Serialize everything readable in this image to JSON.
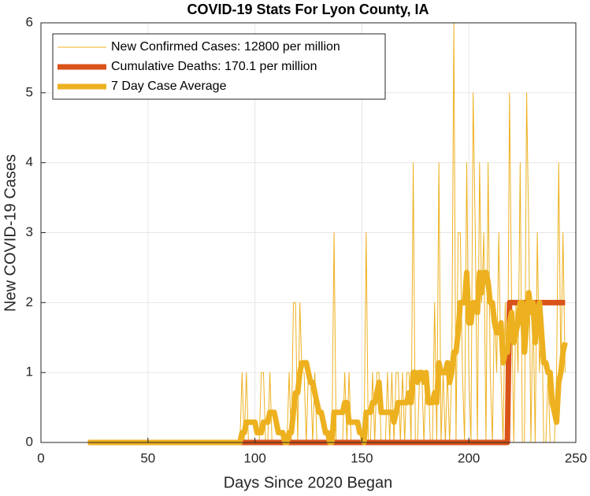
{
  "chart_data": {
    "type": "line",
    "title": "COVID-19 Stats For Lyon County, IA",
    "x_label": "Days Since 2020 Began",
    "y_label": "New COVID-19 Cases",
    "xlim": [
      0,
      250
    ],
    "xticks": [
      0,
      50,
      100,
      150,
      200,
      250
    ],
    "ylim": [
      0,
      6
    ],
    "yticks": [
      0,
      1,
      2,
      3,
      4,
      5,
      6
    ],
    "grid": true,
    "legend_position": "upper-left",
    "x": [
      22,
      23,
      24,
      25,
      26,
      27,
      28,
      29,
      30,
      31,
      32,
      33,
      34,
      35,
      36,
      37,
      38,
      39,
      40,
      41,
      42,
      43,
      44,
      45,
      46,
      47,
      48,
      49,
      50,
      51,
      52,
      53,
      54,
      55,
      56,
      57,
      58,
      59,
      60,
      61,
      62,
      63,
      64,
      65,
      66,
      67,
      68,
      69,
      70,
      71,
      72,
      73,
      74,
      75,
      76,
      77,
      78,
      79,
      80,
      81,
      82,
      83,
      84,
      85,
      86,
      87,
      88,
      89,
      90,
      91,
      92,
      93,
      94,
      95,
      96,
      97,
      98,
      99,
      100,
      101,
      102,
      103,
      104,
      105,
      106,
      107,
      108,
      109,
      110,
      111,
      112,
      113,
      114,
      115,
      116,
      117,
      118,
      119,
      120,
      121,
      122,
      123,
      124,
      125,
      126,
      127,
      128,
      129,
      130,
      131,
      132,
      133,
      134,
      135,
      136,
      137,
      138,
      139,
      140,
      141,
      142,
      143,
      144,
      145,
      146,
      147,
      148,
      149,
      150,
      151,
      152,
      153,
      154,
      155,
      156,
      157,
      158,
      159,
      160,
      161,
      162,
      163,
      164,
      165,
      166,
      167,
      168,
      169,
      170,
      171,
      172,
      173,
      174,
      175,
      176,
      177,
      178,
      179,
      180,
      181,
      182,
      183,
      184,
      185,
      186,
      187,
      188,
      189,
      190,
      191,
      192,
      193,
      194,
      195,
      196,
      197,
      198,
      199,
      200,
      201,
      202,
      203,
      204,
      205,
      206,
      207,
      208,
      209,
      210,
      211,
      212,
      213,
      214,
      215,
      216,
      217,
      218,
      219,
      220,
      221,
      222,
      223,
      224,
      225,
      226,
      227,
      228,
      229,
      230,
      231,
      232,
      233,
      234,
      235,
      236,
      237,
      238,
      239,
      240,
      241,
      242,
      243,
      244,
      245
    ],
    "series": [
      {
        "name": "New Confirmed Cases: 12800 per million",
        "color": "#EDB120",
        "values": [
          0,
          0,
          0,
          0,
          0,
          0,
          0,
          0,
          0,
          0,
          0,
          0,
          0,
          0,
          0,
          0,
          0,
          0,
          0,
          0,
          0,
          0,
          0,
          0,
          0,
          0,
          0,
          0,
          0,
          0,
          0,
          0,
          0,
          0,
          0,
          0,
          0,
          0,
          0,
          0,
          0,
          0,
          0,
          0,
          0,
          0,
          0,
          0,
          0,
          0,
          0,
          0,
          0,
          0,
          0,
          0,
          0,
          0,
          0,
          0,
          0,
          0,
          0,
          0,
          0,
          0,
          0,
          0,
          0,
          0,
          0,
          0,
          1,
          0,
          1,
          0,
          0,
          0,
          0,
          0,
          0,
          1,
          1,
          0,
          0,
          1,
          0,
          0,
          0,
          0,
          0,
          0,
          0,
          0,
          1,
          0,
          2,
          2,
          0,
          2,
          1,
          1,
          0,
          1,
          1,
          0,
          1,
          0,
          0,
          0,
          0,
          0,
          0,
          0,
          0,
          3,
          0,
          0,
          0,
          0,
          1,
          0,
          1,
          0,
          0,
          0,
          0,
          0,
          0,
          0,
          3,
          0,
          0,
          1,
          0,
          1,
          1,
          0,
          0,
          0,
          1,
          0,
          1,
          0,
          1,
          1,
          0,
          1,
          0,
          1,
          1,
          0,
          4,
          0,
          0,
          1,
          1,
          0,
          1,
          1,
          0,
          0,
          2,
          0,
          4,
          0,
          1,
          0,
          1,
          0,
          1,
          6,
          0,
          3,
          3,
          1,
          0,
          4,
          1,
          0,
          5,
          3,
          0,
          4,
          2,
          3,
          0,
          4,
          1,
          0,
          2,
          1,
          3,
          1,
          0,
          2,
          0,
          5,
          2,
          0,
          2,
          1,
          4,
          0,
          0,
          5,
          3,
          0,
          2,
          0,
          3,
          1,
          2,
          0,
          0,
          1,
          0,
          0,
          0,
          1,
          4,
          1,
          3,
          1
        ]
      },
      {
        "name": "Cumulative Deaths: 170.1 per million",
        "color": "#D95319",
        "values": [
          0,
          0,
          0,
          0,
          0,
          0,
          0,
          0,
          0,
          0,
          0,
          0,
          0,
          0,
          0,
          0,
          0,
          0,
          0,
          0,
          0,
          0,
          0,
          0,
          0,
          0,
          0,
          0,
          0,
          0,
          0,
          0,
          0,
          0,
          0,
          0,
          0,
          0,
          0,
          0,
          0,
          0,
          0,
          0,
          0,
          0,
          0,
          0,
          0,
          0,
          0,
          0,
          0,
          0,
          0,
          0,
          0,
          0,
          0,
          0,
          0,
          0,
          0,
          0,
          0,
          0,
          0,
          0,
          0,
          0,
          0,
          0,
          0,
          0,
          0,
          0,
          0,
          0,
          0,
          0,
          0,
          0,
          0,
          0,
          0,
          0,
          0,
          0,
          0,
          0,
          0,
          0,
          0,
          0,
          0,
          0,
          0,
          0,
          0,
          0,
          0,
          0,
          0,
          0,
          0,
          0,
          0,
          0,
          0,
          0,
          0,
          0,
          0,
          0,
          0,
          0,
          0,
          0,
          0,
          0,
          0,
          0,
          0,
          0,
          0,
          0,
          0,
          0,
          0,
          0,
          0,
          0,
          0,
          0,
          0,
          0,
          0,
          0,
          0,
          0,
          0,
          0,
          0,
          0,
          0,
          0,
          0,
          0,
          0,
          0,
          0,
          0,
          0,
          0,
          0,
          0,
          0,
          0,
          0,
          0,
          0,
          0,
          0,
          0,
          0,
          0,
          0,
          0,
          0,
          0,
          0,
          0,
          0,
          0,
          0,
          0,
          0,
          0,
          0,
          0,
          0,
          0,
          0,
          0,
          0,
          0,
          0,
          0,
          0,
          0,
          0,
          0,
          0,
          0,
          0,
          0,
          0,
          2,
          2,
          2,
          2,
          2,
          2,
          2,
          2,
          2,
          2,
          2,
          2,
          2,
          2,
          2,
          2,
          2,
          2,
          2,
          2,
          2,
          2,
          2,
          2,
          2,
          2,
          2
        ]
      },
      {
        "name": "7 Day Case Average",
        "color": "#EDB120",
        "values": [
          0,
          0,
          0,
          0,
          0,
          0,
          0,
          0,
          0,
          0,
          0,
          0,
          0,
          0,
          0,
          0,
          0,
          0,
          0,
          0,
          0,
          0,
          0,
          0,
          0,
          0,
          0,
          0,
          0,
          0,
          0,
          0,
          0,
          0,
          0,
          0,
          0,
          0,
          0,
          0,
          0,
          0,
          0,
          0,
          0,
          0,
          0,
          0,
          0,
          0,
          0,
          0,
          0,
          0,
          0,
          0,
          0,
          0,
          0,
          0,
          0,
          0,
          0,
          0,
          0,
          0,
          0,
          0,
          0,
          0,
          0,
          0,
          0.14,
          0.14,
          0.29,
          0.29,
          0.29,
          0.29,
          0.29,
          0.14,
          0.14,
          0.14,
          0.29,
          0.29,
          0.29,
          0.43,
          0.43,
          0.43,
          0.29,
          0.14,
          0.14,
          0.14,
          0,
          0,
          0.14,
          0.14,
          0.43,
          0.71,
          0.71,
          1,
          1.14,
          1.14,
          1.14,
          1,
          0.86,
          0.86,
          0.71,
          0.57,
          0.43,
          0.43,
          0.29,
          0.14,
          0.14,
          0,
          0,
          0.43,
          0.43,
          0.43,
          0.43,
          0.43,
          0.57,
          0.57,
          0.29,
          0.29,
          0.29,
          0.29,
          0.29,
          0.14,
          0.14,
          0,
          0.43,
          0.43,
          0.43,
          0.57,
          0.57,
          0.71,
          0.86,
          0.43,
          0.43,
          0.43,
          0.43,
          0.43,
          0.43,
          0.29,
          0.43,
          0.57,
          0.57,
          0.57,
          0.57,
          0.57,
          0.71,
          0.57,
          1,
          1,
          0.86,
          1,
          1,
          0.86,
          1,
          0.57,
          0.57,
          0.57,
          0.71,
          0.57,
          1.14,
          1,
          1,
          1,
          1.14,
          0.86,
          1,
          1.29,
          1.29,
          1.57,
          2,
          2,
          2,
          2.43,
          1.71,
          1.71,
          2,
          2,
          1.86,
          2.43,
          2.14,
          2.43,
          2.43,
          2.29,
          2,
          2,
          1.71,
          1.57,
          1.57,
          1.71,
          1.14,
          1.29,
          1.29,
          1.71,
          1.86,
          1.43,
          1.57,
          1.71,
          2,
          2,
          1.29,
          1.71,
          2.14,
          1.86,
          2,
          1.43,
          1.86,
          2,
          1.57,
          1.14,
          1.14,
          1,
          1,
          0.57,
          0.43,
          0.29,
          0.86,
          1,
          1.29,
          1.43
        ]
      }
    ]
  }
}
